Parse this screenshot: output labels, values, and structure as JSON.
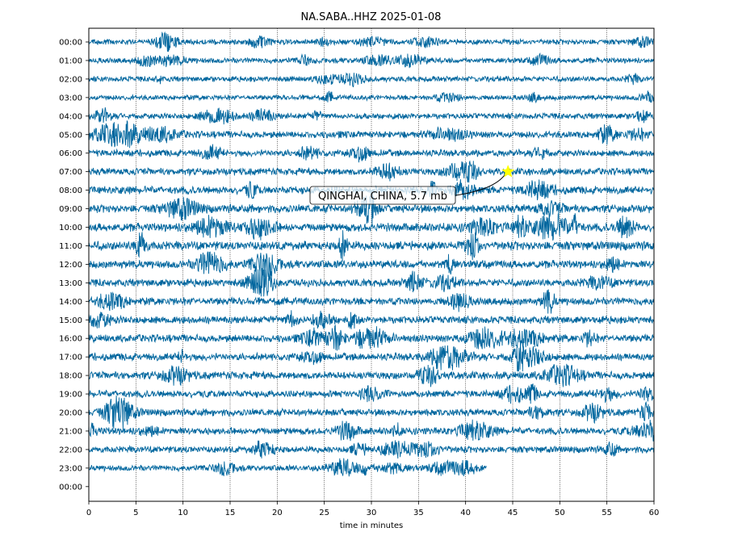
{
  "chart_data": {
    "type": "line",
    "title": "NA.SABA..HHZ 2025-01-08",
    "xlabel": "time in minutes",
    "ylabel": "",
    "xlim": [
      0,
      60
    ],
    "x_ticks": [
      0,
      5,
      10,
      15,
      20,
      25,
      30,
      35,
      40,
      45,
      50,
      55,
      60
    ],
    "grid": "vertical dotted lines at each x tick",
    "trace_color": "#00669e",
    "rows": [
      "00:00",
      "01:00",
      "02:00",
      "03:00",
      "04:00",
      "05:00",
      "06:00",
      "07:00",
      "08:00",
      "09:00",
      "10:00",
      "11:00",
      "12:00",
      "13:00",
      "14:00",
      "15:00",
      "16:00",
      "17:00",
      "18:00",
      "19:00",
      "20:00",
      "21:00",
      "22:00",
      "23:00",
      "00:00"
    ],
    "row_noise_level": [
      0.35,
      0.35,
      0.35,
      0.3,
      0.45,
      0.6,
      0.55,
      0.6,
      0.7,
      0.75,
      0.8,
      0.9,
      0.75,
      0.7,
      0.7,
      0.7,
      0.7,
      0.65,
      0.7,
      0.6,
      0.6,
      0.6,
      0.55,
      0.4,
      0
    ],
    "row_end_minutes": [
      60,
      60,
      60,
      60,
      60,
      60,
      60,
      60,
      60,
      60,
      60,
      60,
      60,
      60,
      60,
      60,
      60,
      60,
      60,
      60,
      60,
      60,
      60,
      42.2,
      0
    ],
    "event": {
      "label": "QINGHAI, CHINA, 5.7 mb",
      "row": "07:00",
      "minute": 44.5,
      "marker_color": "#ffff00"
    }
  }
}
